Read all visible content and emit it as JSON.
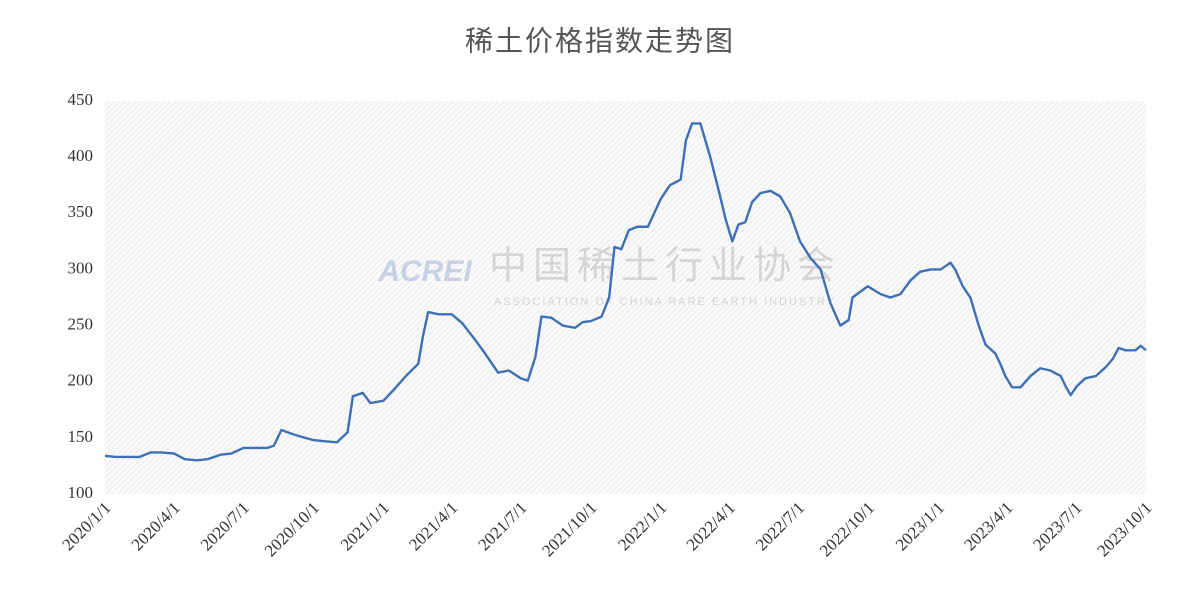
{
  "chart_data": {
    "type": "line",
    "title": "稀土价格指数走势图",
    "watermark": {
      "logo": "ACREI",
      "name_cn": "中国稀土行业协会",
      "name_en": "ASSOCIATION OF CHINA RARE EARTH INDUSTRY"
    },
    "x": [
      "2020-01-01",
      "2020-01-15",
      "2020-02-01",
      "2020-02-15",
      "2020-03-01",
      "2020-03-15",
      "2020-04-01",
      "2020-04-15",
      "2020-05-01",
      "2020-05-15",
      "2020-06-01",
      "2020-06-15",
      "2020-07-01",
      "2020-07-15",
      "2020-08-01",
      "2020-08-10",
      "2020-08-20",
      "2020-09-01",
      "2020-09-15",
      "2020-10-01",
      "2020-10-15",
      "2020-11-01",
      "2020-11-15",
      "2020-11-22",
      "2020-12-05",
      "2020-12-15",
      "2021-01-01",
      "2021-01-15",
      "2021-02-01",
      "2021-02-16",
      "2021-02-22",
      "2021-03-01",
      "2021-03-15",
      "2021-04-01",
      "2021-04-15",
      "2021-05-01",
      "2021-05-15",
      "2021-06-01",
      "2021-06-15",
      "2021-07-01",
      "2021-07-10",
      "2021-07-20",
      "2021-07-28",
      "2021-08-10",
      "2021-08-25",
      "2021-09-10",
      "2021-09-20",
      "2021-10-01",
      "2021-10-15",
      "2021-10-25",
      "2021-11-01",
      "2021-11-10",
      "2021-11-20",
      "2021-12-01",
      "2021-12-15",
      "2022-01-01",
      "2022-01-13",
      "2022-01-27",
      "2022-02-03",
      "2022-02-11",
      "2022-02-22",
      "2022-03-07",
      "2022-03-20",
      "2022-03-27",
      "2022-04-05",
      "2022-04-13",
      "2022-04-22",
      "2022-05-01",
      "2022-05-12",
      "2022-05-25",
      "2022-06-07",
      "2022-06-20",
      "2022-07-03",
      "2022-07-17",
      "2022-07-30",
      "2022-08-12",
      "2022-08-25",
      "2022-09-05",
      "2022-09-10",
      "2022-09-20",
      "2022-09-30",
      "2022-10-17",
      "2022-10-30",
      "2022-11-12",
      "2022-11-25",
      "2022-12-08",
      "2022-12-22",
      "2023-01-04",
      "2023-01-17",
      "2023-01-23",
      "2023-02-02",
      "2023-02-12",
      "2023-02-23",
      "2023-03-04",
      "2023-03-17",
      "2023-03-24",
      "2023-03-30",
      "2023-04-08",
      "2023-04-19",
      "2023-05-02",
      "2023-05-15",
      "2023-05-28",
      "2023-06-11",
      "2023-06-18",
      "2023-06-24",
      "2023-07-02",
      "2023-07-13",
      "2023-07-27",
      "2023-08-09",
      "2023-08-18",
      "2023-08-26",
      "2023-09-04",
      "2023-09-17",
      "2023-09-24",
      "2023-10-01"
    ],
    "series": [
      {
        "name": "稀土价格指数",
        "color": "#3e70b6",
        "values": [
          134,
          133,
          133,
          133,
          137,
          137,
          136,
          131,
          130,
          131,
          135,
          136,
          141,
          141,
          141,
          143,
          157,
          154,
          151,
          148,
          147,
          146,
          155,
          187,
          190,
          181,
          183,
          193,
          206,
          216,
          240,
          262,
          260,
          260,
          252,
          238,
          225,
          208,
          210,
          203,
          201,
          222,
          258,
          257,
          250,
          248,
          253,
          254,
          258,
          275,
          320,
          318,
          335,
          338,
          338,
          363,
          375,
          380,
          415,
          430,
          430,
          400,
          365,
          345,
          325,
          340,
          342,
          360,
          368,
          370,
          365,
          350,
          325,
          310,
          300,
          270,
          250,
          255,
          275,
          280,
          285,
          278,
          275,
          278,
          290,
          298,
          300,
          300,
          306,
          300,
          285,
          275,
          250,
          233,
          225,
          215,
          205,
          195,
          195,
          205,
          212,
          210,
          205,
          195,
          188,
          196,
          203,
          205,
          213,
          220,
          230,
          228,
          228,
          232,
          228
        ]
      }
    ],
    "xlim": [
      "2020-01-01",
      "2023-10-01"
    ],
    "xticks": [
      {
        "value": "2020-01-01",
        "label": "2020/1/1"
      },
      {
        "value": "2020-04-01",
        "label": "2020/4/1"
      },
      {
        "value": "2020-07-01",
        "label": "2020/7/1"
      },
      {
        "value": "2020-10-01",
        "label": "2020/10/1"
      },
      {
        "value": "2021-01-01",
        "label": "2021/1/1"
      },
      {
        "value": "2021-04-01",
        "label": "2021/4/1"
      },
      {
        "value": "2021-07-01",
        "label": "2021/7/1"
      },
      {
        "value": "2021-10-01",
        "label": "2021/10/1"
      },
      {
        "value": "2022-01-01",
        "label": "2022/1/1"
      },
      {
        "value": "2022-04-01",
        "label": "2022/4/1"
      },
      {
        "value": "2022-07-01",
        "label": "2022/7/1"
      },
      {
        "value": "2022-10-01",
        "label": "2022/10/1"
      },
      {
        "value": "2023-01-01",
        "label": "2023/1/1"
      },
      {
        "value": "2023-04-01",
        "label": "2023/4/1"
      },
      {
        "value": "2023-07-01",
        "label": "2023/7/1"
      },
      {
        "value": "2023-10-01",
        "label": "2023/10/1"
      }
    ],
    "ylim": [
      100,
      450
    ],
    "yticks": [
      100,
      150,
      200,
      250,
      300,
      350,
      400,
      450
    ],
    "grid": false
  }
}
